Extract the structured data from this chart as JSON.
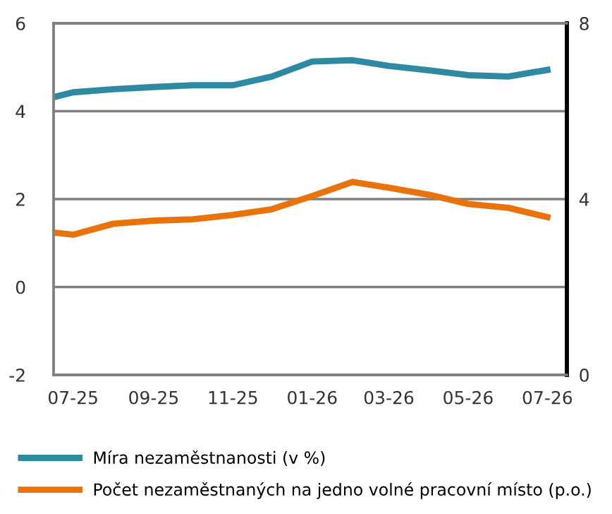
{
  "chart_data": {
    "type": "line",
    "x": [
      "2025-06-16",
      "2025-07-01",
      "2025-08-01",
      "2025-09-01",
      "2025-10-01",
      "2025-11-01",
      "2025-12-01",
      "2026-01-01",
      "2026-02-01",
      "2026-03-01",
      "2026-04-01",
      "2026-05-01",
      "2026-06-01",
      "2026-07-01"
    ],
    "series": [
      {
        "name": "Míra nezaměstnanosti (v %)",
        "color": "#2e8aa0",
        "values": [
          4.32,
          4.43,
          4.5,
          4.55,
          4.59,
          4.59,
          4.79,
          5.13,
          5.16,
          5.03,
          4.93,
          4.82,
          4.79,
          4.94
        ]
      },
      {
        "name": "Počet nezaměstnaných na jedno volné pracovní místo (p.o.)",
        "color": "#e8720c",
        "axis": "y2",
        "values": [
          3.24,
          3.19,
          3.44,
          3.51,
          3.54,
          3.64,
          3.77,
          4.07,
          4.39,
          4.26,
          4.1,
          3.89,
          3.8,
          3.59
        ]
      }
    ],
    "xlim": [
      "2025-06-16",
      "2026-07-16"
    ],
    "xticks": [
      {
        "value": "2025-07-01",
        "label": "07-25"
      },
      {
        "value": "2025-09-01",
        "label": "09-25"
      },
      {
        "value": "2025-11-01",
        "label": "11-25"
      },
      {
        "value": "2026-01-01",
        "label": "01-26"
      },
      {
        "value": "2026-03-01",
        "label": "03-26"
      },
      {
        "value": "2026-05-01",
        "label": "05-26"
      },
      {
        "value": "2026-07-01",
        "label": "07-26"
      }
    ],
    "ylim": [
      -2,
      6
    ],
    "yticks": [
      -2,
      0,
      2,
      4,
      6
    ],
    "y2lim": [
      0,
      8
    ],
    "y2ticks": [
      0,
      4,
      8
    ],
    "grid": "y",
    "legend": "bottom",
    "marker": "none",
    "line_style": "solid"
  }
}
